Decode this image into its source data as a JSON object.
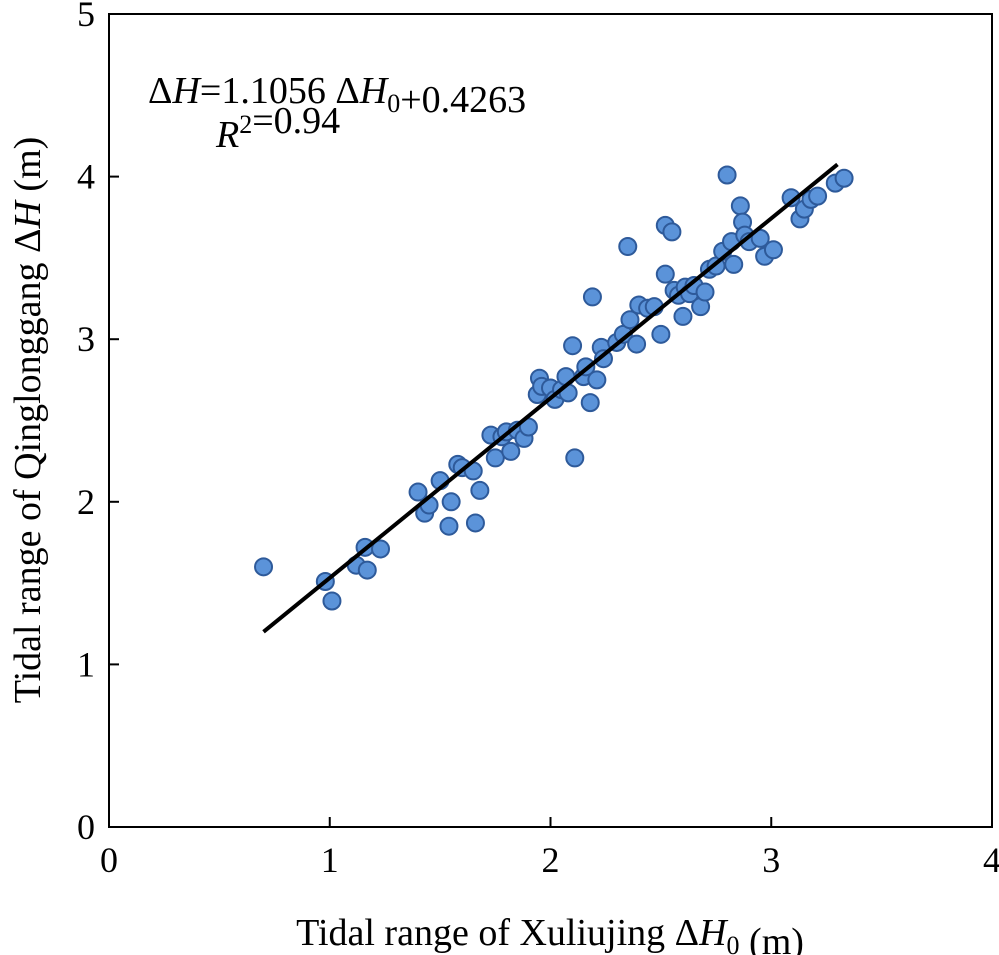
{
  "chart_data": {
    "type": "scatter",
    "xlabel": "Tidal range of Xuliujing ΔH0 (m)",
    "ylabel": "Tidal range of Qinglonggang ΔH (m)",
    "xlim": [
      0,
      4
    ],
    "ylim": [
      0,
      5
    ],
    "x_ticks": [
      "0",
      "1",
      "2",
      "3",
      "4"
    ],
    "y_ticks": [
      "0",
      "1",
      "2",
      "3",
      "4",
      "5"
    ],
    "grid": false,
    "fit": {
      "slope": 1.1056,
      "intercept": 0.4263,
      "x_range": [
        0.7,
        3.3
      ]
    },
    "annotation": {
      "equation": "ΔH=1.1056 ΔH0+0.4263",
      "r_squared": "R2=0.94"
    },
    "points": [
      {
        "x": 0.7,
        "y": 1.6
      },
      {
        "x": 0.98,
        "y": 1.51
      },
      {
        "x": 1.01,
        "y": 1.39
      },
      {
        "x": 1.12,
        "y": 1.61
      },
      {
        "x": 1.16,
        "y": 1.72
      },
      {
        "x": 1.17,
        "y": 1.58
      },
      {
        "x": 1.23,
        "y": 1.71
      },
      {
        "x": 1.4,
        "y": 2.06
      },
      {
        "x": 1.43,
        "y": 1.93
      },
      {
        "x": 1.45,
        "y": 1.98
      },
      {
        "x": 1.5,
        "y": 2.13
      },
      {
        "x": 1.54,
        "y": 1.85
      },
      {
        "x": 1.55,
        "y": 2.0
      },
      {
        "x": 1.58,
        "y": 2.23
      },
      {
        "x": 1.6,
        "y": 2.21
      },
      {
        "x": 1.65,
        "y": 2.19
      },
      {
        "x": 1.66,
        "y": 1.87
      },
      {
        "x": 1.68,
        "y": 2.07
      },
      {
        "x": 1.73,
        "y": 2.41
      },
      {
        "x": 1.75,
        "y": 2.27
      },
      {
        "x": 1.78,
        "y": 2.4
      },
      {
        "x": 1.8,
        "y": 2.43
      },
      {
        "x": 1.82,
        "y": 2.31
      },
      {
        "x": 1.85,
        "y": 2.44
      },
      {
        "x": 1.88,
        "y": 2.39
      },
      {
        "x": 1.9,
        "y": 2.46
      },
      {
        "x": 1.94,
        "y": 2.66
      },
      {
        "x": 1.95,
        "y": 2.76
      },
      {
        "x": 1.96,
        "y": 2.71
      },
      {
        "x": 2.0,
        "y": 2.7
      },
      {
        "x": 2.02,
        "y": 2.63
      },
      {
        "x": 2.05,
        "y": 2.69
      },
      {
        "x": 2.07,
        "y": 2.77
      },
      {
        "x": 2.08,
        "y": 2.67
      },
      {
        "x": 2.1,
        "y": 2.96
      },
      {
        "x": 2.11,
        "y": 2.27
      },
      {
        "x": 2.15,
        "y": 2.77
      },
      {
        "x": 2.16,
        "y": 2.83
      },
      {
        "x": 2.18,
        "y": 2.61
      },
      {
        "x": 2.19,
        "y": 3.26
      },
      {
        "x": 2.21,
        "y": 2.75
      },
      {
        "x": 2.23,
        "y": 2.95
      },
      {
        "x": 2.24,
        "y": 2.88
      },
      {
        "x": 2.3,
        "y": 2.98
      },
      {
        "x": 2.33,
        "y": 3.03
      },
      {
        "x": 2.35,
        "y": 3.57
      },
      {
        "x": 2.36,
        "y": 3.12
      },
      {
        "x": 2.39,
        "y": 2.97
      },
      {
        "x": 2.4,
        "y": 3.21
      },
      {
        "x": 2.44,
        "y": 3.19
      },
      {
        "x": 2.47,
        "y": 3.2
      },
      {
        "x": 2.5,
        "y": 3.03
      },
      {
        "x": 2.52,
        "y": 3.4
      },
      {
        "x": 2.52,
        "y": 3.7
      },
      {
        "x": 2.55,
        "y": 3.66
      },
      {
        "x": 2.56,
        "y": 3.3
      },
      {
        "x": 2.58,
        "y": 3.27
      },
      {
        "x": 2.6,
        "y": 3.14
      },
      {
        "x": 2.61,
        "y": 3.32
      },
      {
        "x": 2.63,
        "y": 3.28
      },
      {
        "x": 2.65,
        "y": 3.33
      },
      {
        "x": 2.68,
        "y": 3.2
      },
      {
        "x": 2.7,
        "y": 3.29
      },
      {
        "x": 2.72,
        "y": 3.43
      },
      {
        "x": 2.75,
        "y": 3.45
      },
      {
        "x": 2.78,
        "y": 3.54
      },
      {
        "x": 2.8,
        "y": 4.01
      },
      {
        "x": 2.82,
        "y": 3.6
      },
      {
        "x": 2.83,
        "y": 3.46
      },
      {
        "x": 2.86,
        "y": 3.82
      },
      {
        "x": 2.87,
        "y": 3.72
      },
      {
        "x": 2.88,
        "y": 3.64
      },
      {
        "x": 2.9,
        "y": 3.6
      },
      {
        "x": 2.95,
        "y": 3.62
      },
      {
        "x": 2.97,
        "y": 3.51
      },
      {
        "x": 3.01,
        "y": 3.55
      },
      {
        "x": 3.09,
        "y": 3.87
      },
      {
        "x": 3.13,
        "y": 3.74
      },
      {
        "x": 3.15,
        "y": 3.8
      },
      {
        "x": 3.18,
        "y": 3.86
      },
      {
        "x": 3.21,
        "y": 3.88
      },
      {
        "x": 3.29,
        "y": 3.96
      },
      {
        "x": 3.33,
        "y": 3.99
      }
    ]
  }
}
